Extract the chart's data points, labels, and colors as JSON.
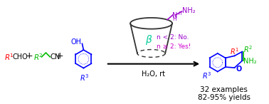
{
  "background": "#ffffff",
  "colors": {
    "red": "#ff0000",
    "green": "#00bb00",
    "blue": "#0000ff",
    "purple": "#cc00cc",
    "purple2": "#9900cc",
    "cyan_green": "#00cc99",
    "dark_gray": "#333333",
    "black": "#000000"
  },
  "text_32examples": "32 examples",
  "text_yields": "82-95% yields",
  "text_h2o": "H₂O, rt",
  "text_n_lt2": "n < 2: No.",
  "text_n_ge2": "n ≥ 2: Yes!",
  "text_beta": "β"
}
